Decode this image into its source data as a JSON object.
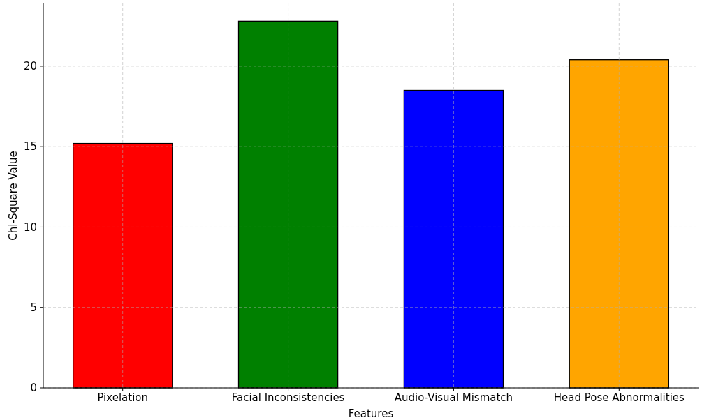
{
  "chart_data": {
    "type": "bar",
    "xlabel": "Features",
    "ylabel": "Chi-Square Value",
    "categories": [
      "Pixelation",
      "Facial Inconsistencies",
      "Audio-Visual Mismatch",
      "Head Pose Abnormalities"
    ],
    "values": [
      15.2,
      22.8,
      18.5,
      20.4
    ],
    "colors": [
      "#ff0000",
      "#008000",
      "#0000ff",
      "#ffa500"
    ],
    "ylim": [
      0,
      23.9
    ],
    "yticks": [
      0,
      5,
      10,
      15,
      20
    ],
    "grid": true
  }
}
